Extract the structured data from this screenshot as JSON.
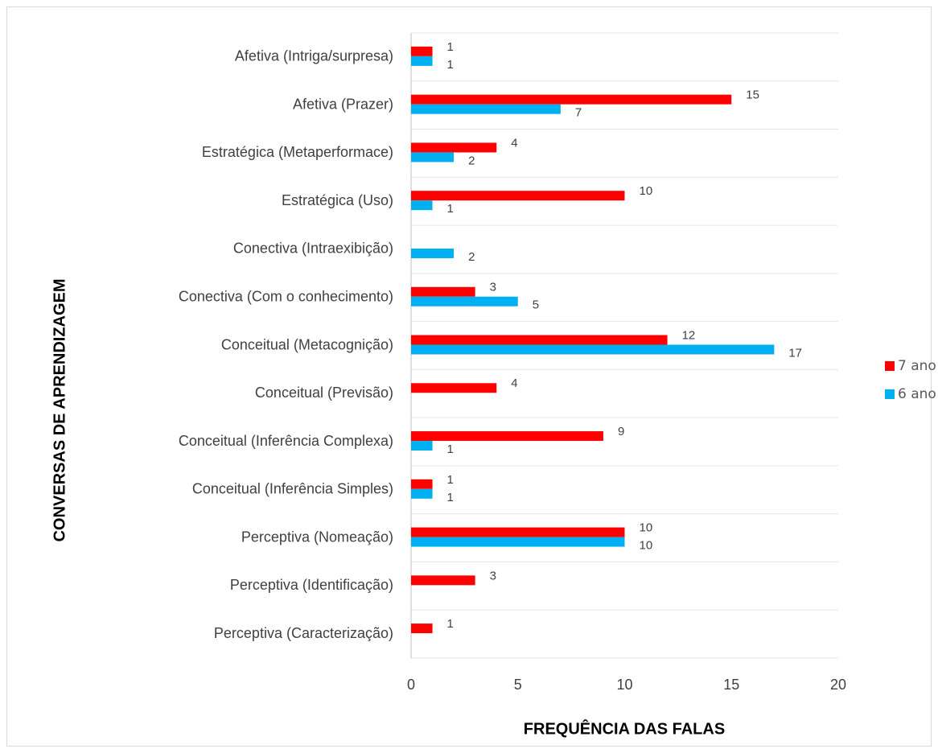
{
  "chart_data": {
    "type": "bar",
    "orientation": "horizontal",
    "xlabel": "FREQUÊNCIA DAS FALAS",
    "ylabel": "CONVERSAS DE APRENDIZAGEM",
    "categories": [
      "Afetiva (Intriga/surpresa)",
      "Afetiva (Prazer)",
      "Estratégica (Metaperformace)",
      "Estratégica (Uso)",
      "Conectiva (Intraexibição)",
      "Conectiva (Com o conhecimento)",
      "Conceitual (Metacognição)",
      "Conceitual (Previsão)",
      "Conceitual (Inferência Complexa)",
      "Conceitual (Inferência Simples)",
      "Perceptiva (Nomeação)",
      "Perceptiva (Identificação)",
      "Perceptiva (Caracterização)"
    ],
    "series": [
      {
        "name": "7 ano",
        "color": "#ff0000",
        "values": [
          1,
          15,
          4,
          10,
          null,
          3,
          12,
          4,
          9,
          1,
          10,
          3,
          1
        ]
      },
      {
        "name": "6 ano",
        "color": "#00b0f0",
        "values": [
          1,
          7,
          2,
          1,
          2,
          5,
          17,
          null,
          1,
          1,
          10,
          null,
          null
        ]
      }
    ],
    "xlim": [
      0,
      20
    ],
    "xticks": [
      0,
      5,
      10,
      15,
      20
    ],
    "legend": "right"
  }
}
